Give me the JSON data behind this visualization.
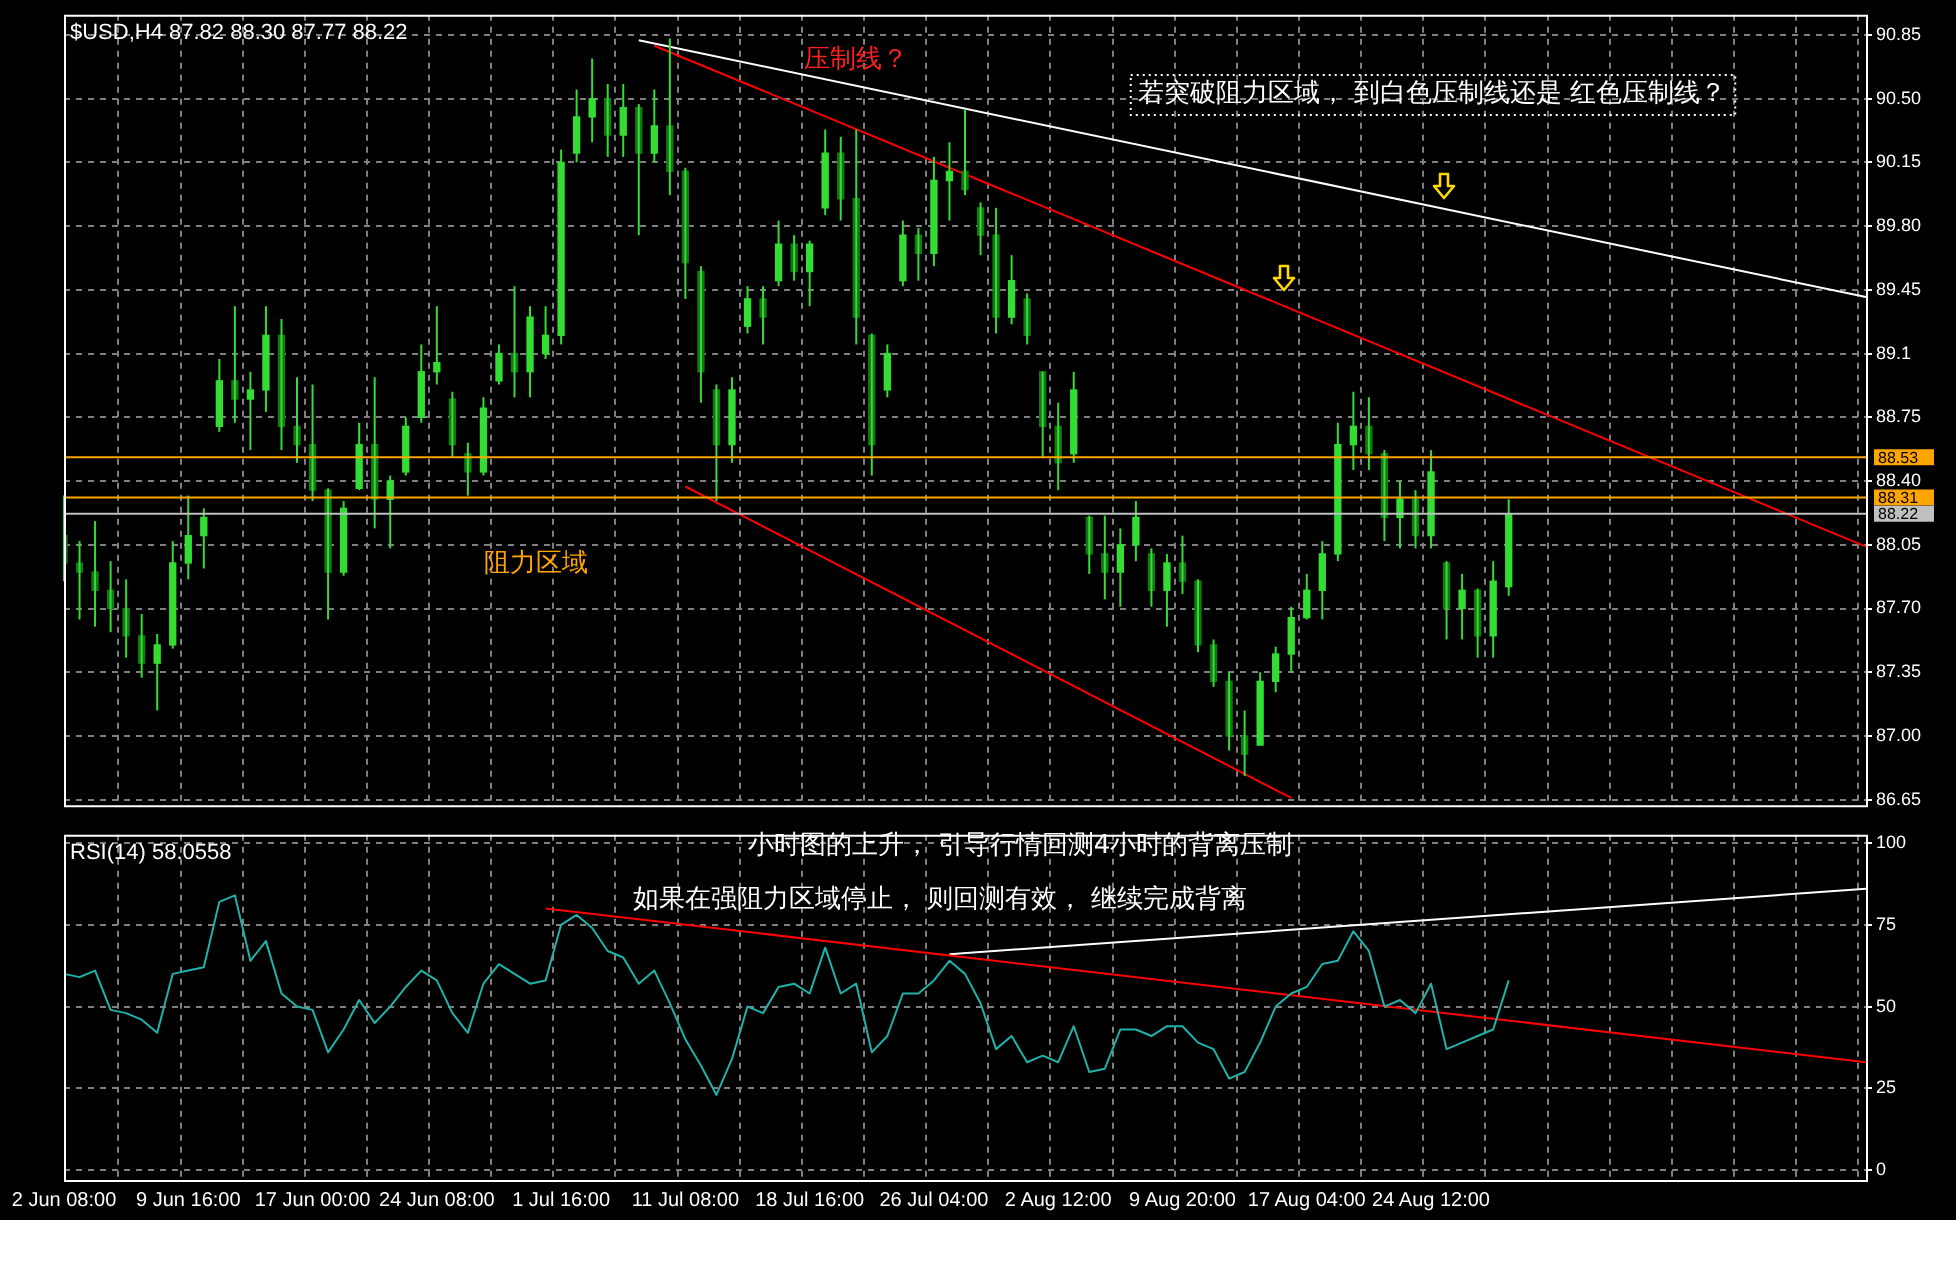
{
  "chart_data": [
    {
      "type": "candlestick",
      "title": "$USD,H4 87.82 88.30 87.77 88.22",
      "color": "#33dd33",
      "colors": [
        "#147814",
        "#147814",
        "#147814",
        "#147814",
        "#147814",
        "#147814",
        "#33dd33",
        "#33dd33",
        "#33dd33",
        "#33dd33",
        "#33dd33",
        "#147814",
        "#33dd33",
        "#33dd33",
        "#147814",
        "#147814",
        "#147814",
        "#147814",
        "#33dd33",
        "#33dd33",
        "#147814",
        "#33dd33",
        "#33dd33",
        "#33dd33",
        "#33dd33",
        "#147814",
        "#147814",
        "#33dd33",
        "#33dd33",
        "#147814",
        "#33dd33",
        "#33dd33",
        "#33dd33",
        "#33dd33",
        "#33dd33",
        "#147814",
        "#33dd33",
        "#147814",
        "#33dd33",
        "#147814",
        "#147814",
        "#147814",
        "#147814",
        "#33dd33",
        "#33dd33",
        "#147814",
        "#33dd33",
        "#147814",
        "#33dd33",
        "#33dd33",
        "#147814",
        "#147814",
        "#147814",
        "#33dd33",
        "#33dd33",
        "#147814",
        "#33dd33",
        "#33dd33",
        "#147814",
        "#147814",
        "#147814",
        "#33dd33",
        "#147814",
        "#147814",
        "#147814",
        "#33dd33",
        "#147814",
        "#147814",
        "#33dd33",
        "#33dd33",
        "#147814",
        "#33dd33",
        "#147814",
        "#147814",
        "#147814",
        "#147814",
        "#147814",
        "#33dd33",
        "#33dd33",
        "#33dd33",
        "#33dd33",
        "#33dd33",
        "#33dd33",
        "#33dd33",
        "#147814",
        "#147814",
        "#33dd33",
        "#147814",
        "#33dd33",
        "#147814",
        "#33dd33",
        "#147814",
        "#33dd33",
        "#33dd33",
        null,
        null,
        null,
        null,
        null,
        null,
        null,
        null,
        null,
        null,
        null,
        null,
        null,
        null,
        null,
        null,
        null,
        null,
        null,
        null,
        null,
        null,
        null
      ],
      "ohlc": [
        [
          88.1,
          88.32,
          87.85,
          87.95
        ],
        [
          87.95,
          88.07,
          87.64,
          87.9
        ],
        [
          87.9,
          88.18,
          87.6,
          87.8
        ],
        [
          87.8,
          87.96,
          87.57,
          87.7
        ],
        [
          87.7,
          87.86,
          87.43,
          87.55
        ],
        [
          87.55,
          87.67,
          87.32,
          87.4
        ],
        [
          87.4,
          87.56,
          87.14,
          87.5
        ],
        [
          87.5,
          88.07,
          87.48,
          87.95
        ],
        [
          87.95,
          88.32,
          87.86,
          88.1
        ],
        [
          88.1,
          88.25,
          87.92,
          88.2
        ],
        [
          88.7,
          89.07,
          88.67,
          88.95
        ],
        [
          88.95,
          89.36,
          88.72,
          88.85
        ],
        [
          88.85,
          89.0,
          88.57,
          88.9
        ],
        [
          88.9,
          89.36,
          88.78,
          89.2
        ],
        [
          89.2,
          89.29,
          88.57,
          88.7
        ],
        [
          88.7,
          88.97,
          88.5,
          88.6
        ],
        [
          88.6,
          88.93,
          88.29,
          88.35
        ],
        [
          88.35,
          88.36,
          87.64,
          87.9
        ],
        [
          87.9,
          88.29,
          87.88,
          88.25
        ],
        [
          88.36,
          88.72,
          88.35,
          88.6
        ],
        [
          88.6,
          88.97,
          88.14,
          88.3
        ],
        [
          88.3,
          88.43,
          88.03,
          88.4
        ],
        [
          88.45,
          88.75,
          88.43,
          88.7
        ],
        [
          88.75,
          89.15,
          88.72,
          89.0
        ],
        [
          89.0,
          89.36,
          88.93,
          89.05
        ],
        [
          88.85,
          88.89,
          88.53,
          88.6
        ],
        [
          88.55,
          88.61,
          88.32,
          88.45
        ],
        [
          88.45,
          88.86,
          88.43,
          88.8
        ],
        [
          88.95,
          89.15,
          88.93,
          89.1
        ],
        [
          89.1,
          89.47,
          88.86,
          89.0
        ],
        [
          89.0,
          89.36,
          88.86,
          89.3
        ],
        [
          89.1,
          89.36,
          89.07,
          89.2
        ],
        [
          89.2,
          90.22,
          89.15,
          90.15
        ],
        [
          90.2,
          90.55,
          90.15,
          90.4
        ],
        [
          90.4,
          90.72,
          90.26,
          90.5
        ],
        [
          90.5,
          90.58,
          90.18,
          90.3
        ],
        [
          90.3,
          90.58,
          90.18,
          90.45
        ],
        [
          90.45,
          90.47,
          89.75,
          90.2
        ],
        [
          90.2,
          90.55,
          90.15,
          90.35
        ],
        [
          90.35,
          90.83,
          89.97,
          90.1
        ],
        [
          90.1,
          90.12,
          89.4,
          89.6
        ],
        [
          89.55,
          89.58,
          88.83,
          89.0
        ],
        [
          88.9,
          88.93,
          88.29,
          88.6
        ],
        [
          88.6,
          88.97,
          88.5,
          88.9
        ],
        [
          89.25,
          89.47,
          89.21,
          89.4
        ],
        [
          89.4,
          89.47,
          89.15,
          89.3
        ],
        [
          89.5,
          89.83,
          89.47,
          89.7
        ],
        [
          89.7,
          89.75,
          89.5,
          89.55
        ],
        [
          89.55,
          89.72,
          89.36,
          89.7
        ],
        [
          89.9,
          90.33,
          89.86,
          90.2
        ],
        [
          90.2,
          90.29,
          89.83,
          89.95
        ],
        [
          89.95,
          90.33,
          89.15,
          89.3
        ],
        [
          89.2,
          89.21,
          88.43,
          88.6
        ],
        [
          88.9,
          89.15,
          88.86,
          89.1
        ],
        [
          89.5,
          89.83,
          89.47,
          89.75
        ],
        [
          89.75,
          89.79,
          89.5,
          89.65
        ],
        [
          89.65,
          90.18,
          89.58,
          90.05
        ],
        [
          90.05,
          90.26,
          89.83,
          90.1
        ],
        [
          90.1,
          90.44,
          89.97,
          90.0
        ],
        [
          89.9,
          89.93,
          89.64,
          89.75
        ],
        [
          89.75,
          89.9,
          89.21,
          89.3
        ],
        [
          89.3,
          89.64,
          89.26,
          89.5
        ],
        [
          89.4,
          89.43,
          89.15,
          89.2
        ],
        [
          89.0,
          89.0,
          88.53,
          88.7
        ],
        [
          88.7,
          88.83,
          88.35,
          88.5
        ],
        [
          88.55,
          89.0,
          88.5,
          88.9
        ],
        [
          88.2,
          88.21,
          87.89,
          88.0
        ],
        [
          88.0,
          88.21,
          87.75,
          87.9
        ],
        [
          87.9,
          88.14,
          87.71,
          88.05
        ],
        [
          88.05,
          88.29,
          87.96,
          88.2
        ],
        [
          88.0,
          88.03,
          87.71,
          87.8
        ],
        [
          87.8,
          88.0,
          87.6,
          87.95
        ],
        [
          87.95,
          88.1,
          87.78,
          87.85
        ],
        [
          87.85,
          87.86,
          87.46,
          87.5
        ],
        [
          87.5,
          87.53,
          87.27,
          87.3
        ],
        [
          87.3,
          87.35,
          86.92,
          87.0
        ],
        [
          87.0,
          87.14,
          86.78,
          86.9
        ],
        [
          86.95,
          87.35,
          86.95,
          87.3
        ],
        [
          87.3,
          87.49,
          87.24,
          87.45
        ],
        [
          87.45,
          87.71,
          87.35,
          87.65
        ],
        [
          87.65,
          87.89,
          87.64,
          87.8
        ],
        [
          87.8,
          88.07,
          87.64,
          88.0
        ],
        [
          88.0,
          88.72,
          87.96,
          88.6
        ],
        [
          88.6,
          88.89,
          88.46,
          88.7
        ],
        [
          88.7,
          88.86,
          88.46,
          88.55
        ],
        [
          88.55,
          88.57,
          88.07,
          88.2
        ],
        [
          88.2,
          88.4,
          88.03,
          88.3
        ],
        [
          88.3,
          88.35,
          88.03,
          88.1
        ],
        [
          88.1,
          88.57,
          88.03,
          88.45
        ],
        [
          87.95,
          87.96,
          87.53,
          87.7
        ],
        [
          87.7,
          87.89,
          87.53,
          87.8
        ],
        [
          87.8,
          87.81,
          87.43,
          87.55
        ],
        [
          87.55,
          87.96,
          87.43,
          87.85
        ],
        [
          87.82,
          88.3,
          87.77,
          88.22
        ],
        null,
        null,
        null,
        null,
        null,
        null,
        null,
        null,
        null,
        null,
        null,
        null,
        null,
        null,
        null,
        null,
        null,
        null,
        null,
        null,
        null,
        null,
        null
      ],
      "series": [
        {
          "type": "line",
          "color": "#ffffff",
          "values": [
            null,
            null,
            null,
            null,
            null,
            null,
            null,
            null,
            null,
            null,
            null,
            null,
            null,
            null,
            null,
            null,
            null,
            null,
            null,
            null,
            null,
            null,
            null,
            null,
            null,
            null,
            null,
            null,
            null,
            null,
            null,
            null,
            null,
            null,
            null,
            null,
            null,
            90.82,
            null,
            null,
            null,
            null,
            null,
            null,
            null,
            null,
            null,
            null,
            null,
            null,
            null,
            null,
            null,
            null,
            null,
            null,
            null,
            null,
            null,
            null,
            null,
            null,
            null,
            null,
            null,
            null,
            null,
            null,
            null,
            null,
            null,
            null,
            null,
            null,
            null,
            null,
            null,
            null,
            null,
            null,
            null,
            null,
            null,
            null,
            null,
            null,
            null,
            null,
            null,
            null,
            null,
            null,
            null,
            null,
            null,
            null,
            null,
            null,
            null,
            null,
            null,
            null,
            null,
            null,
            null,
            null,
            null,
            null,
            null,
            null,
            null,
            null,
            null,
            null,
            null,
            null,
            89.41
          ]
        },
        {
          "type": "line",
          "color": "#ff0000",
          "values": [
            null,
            null,
            null,
            null,
            null,
            null,
            null,
            null,
            null,
            null,
            null,
            null,
            null,
            null,
            null,
            null,
            null,
            null,
            null,
            null,
            null,
            null,
            null,
            null,
            null,
            null,
            null,
            null,
            null,
            null,
            null,
            null,
            null,
            null,
            null,
            null,
            null,
            null,
            90.79,
            null,
            null,
            null,
            null,
            null,
            null,
            null,
            null,
            null,
            null,
            null,
            null,
            null,
            null,
            null,
            null,
            null,
            null,
            null,
            null,
            null,
            null,
            null,
            null,
            null,
            null,
            null,
            null,
            null,
            null,
            null,
            null,
            null,
            null,
            null,
            null,
            null,
            null,
            null,
            null,
            null,
            null,
            null,
            null,
            null,
            null,
            null,
            null,
            null,
            null,
            null,
            null,
            null,
            null,
            null,
            null,
            null,
            null,
            null,
            null,
            null,
            null,
            null,
            null,
            null,
            null,
            null,
            null,
            null,
            null,
            null,
            null,
            null,
            null,
            null,
            null,
            null,
            88.04
          ]
        },
        {
          "type": "line",
          "color": "#ff0000",
          "values": [
            null,
            null,
            null,
            null,
            null,
            null,
            null,
            null,
            null,
            null,
            null,
            null,
            null,
            null,
            null,
            null,
            null,
            null,
            null,
            null,
            null,
            null,
            null,
            null,
            null,
            null,
            null,
            null,
            null,
            null,
            null,
            null,
            null,
            null,
            null,
            null,
            null,
            null,
            null,
            null,
            88.37,
            null,
            null,
            null,
            null,
            null,
            null,
            null,
            null,
            null,
            null,
            null,
            null,
            null,
            null,
            null,
            null,
            null,
            null,
            null,
            null,
            null,
            null,
            null,
            null,
            null,
            null,
            null,
            null,
            null,
            null,
            null,
            null,
            null,
            null,
            null,
            null,
            null,
            null,
            86.66,
            null,
            null,
            null,
            null,
            null,
            null,
            null,
            null,
            null,
            null,
            null,
            null,
            null,
            null,
            null,
            null,
            null,
            null,
            null,
            null,
            null,
            null,
            null,
            null,
            null,
            null,
            null,
            null,
            null,
            null,
            null,
            null,
            null,
            null,
            null,
            null,
            null
          ]
        }
      ],
      "ylim": [
        86.62,
        90.96
      ],
      "yticks": [
        90.85,
        {
          "value": 90.5,
          "label": "90.50"
        },
        90.15,
        {
          "value": 89.8,
          "label": "89.80"
        },
        89.45,
        89.1,
        88.75,
        {
          "value": 88.4,
          "label": "88.40"
        },
        88.05,
        {
          "value": 87.7,
          "label": "87.70"
        },
        87.35,
        {
          "value": 87,
          "label": "87.00"
        },
        86.65
      ],
      "ref_lines": [
        {
          "axis": "y",
          "value": 88.53,
          "label": "88.53",
          "color": "#ffa500"
        },
        {
          "axis": "y",
          "value": 88.31,
          "label": "88.31",
          "color": "#ffa500"
        },
        {
          "axis": "y",
          "value": 88.22,
          "label": "88.22",
          "color": "#c0c0c0"
        }
      ],
      "annotations": [
        "压制线？",
        "若突破阻力区域， 到白色压制线还是 红色压制线？",
        "阻力区域"
      ],
      "grid": true,
      "tick_labels": "y"
    },
    {
      "type": "line",
      "title": "RSI(14) 58.0558",
      "categories": [
        "2 Jun 08:00",
        null,
        null,
        null,
        null,
        null,
        null,
        null,
        "9 Jun 16:00",
        null,
        null,
        null,
        null,
        null,
        null,
        null,
        "17 Jun 00:00",
        null,
        null,
        null,
        null,
        null,
        null,
        null,
        "24 Jun 08:00",
        null,
        null,
        null,
        null,
        null,
        null,
        null,
        "1 Jul 16:00",
        null,
        null,
        null,
        null,
        null,
        null,
        null,
        "11 Jul 08:00",
        null,
        null,
        null,
        null,
        null,
        null,
        null,
        "18 Jul 16:00",
        null,
        null,
        null,
        null,
        null,
        null,
        null,
        "26 Jul 04:00",
        null,
        null,
        null,
        null,
        null,
        null,
        null,
        "2 Aug 12:00",
        null,
        null,
        null,
        null,
        null,
        null,
        null,
        "9 Aug 20:00",
        null,
        null,
        null,
        null,
        null,
        null,
        null,
        "17 Aug 04:00",
        null,
        null,
        null,
        null,
        null,
        null,
        null,
        "24 Aug 12:00",
        null,
        null,
        null,
        null,
        null,
        null,
        null,
        null,
        null,
        null,
        null,
        null,
        null,
        null,
        null,
        null,
        null,
        null,
        null,
        null,
        null,
        null,
        null,
        null,
        null,
        null,
        null,
        null
      ],
      "series": [
        {
          "color": "#20b2aa",
          "values": [
            60,
            59,
            61,
            49,
            48,
            46,
            42,
            60,
            61,
            62,
            82,
            84,
            64,
            70,
            54,
            50,
            49,
            36,
            43,
            52,
            45,
            50,
            56,
            61,
            58,
            48,
            42,
            57,
            63,
            60,
            57,
            58,
            75,
            78,
            74,
            67,
            65,
            57,
            61,
            51,
            40,
            32,
            23,
            34,
            50,
            48,
            56,
            57,
            54,
            68,
            54,
            57,
            36,
            41,
            54,
            54,
            58,
            64,
            60,
            51,
            37,
            41,
            33,
            35,
            33,
            44,
            30,
            31,
            43,
            43,
            41,
            44,
            44,
            39,
            37,
            28,
            30,
            39,
            50,
            54,
            56,
            63,
            64,
            73,
            67,
            50,
            52,
            48,
            57,
            37,
            39,
            41,
            43,
            58,
            null,
            null,
            null,
            null,
            null,
            null,
            null,
            null,
            null,
            null,
            null,
            null,
            null,
            null,
            null,
            null,
            null,
            null,
            null,
            null,
            null,
            null,
            null
          ]
        },
        {
          "color": "#ff0000",
          "values": [
            null,
            null,
            null,
            null,
            null,
            null,
            null,
            null,
            null,
            null,
            null,
            null,
            null,
            null,
            null,
            null,
            null,
            null,
            null,
            null,
            null,
            null,
            null,
            null,
            null,
            null,
            null,
            null,
            null,
            null,
            null,
            80,
            null,
            null,
            null,
            null,
            null,
            null,
            null,
            null,
            null,
            null,
            null,
            null,
            null,
            null,
            null,
            null,
            null,
            null,
            null,
            null,
            null,
            null,
            null,
            null,
            null,
            null,
            null,
            null,
            null,
            null,
            null,
            null,
            null,
            null,
            null,
            null,
            null,
            null,
            null,
            null,
            null,
            null,
            null,
            null,
            null,
            null,
            null,
            null,
            null,
            null,
            null,
            null,
            null,
            null,
            null,
            null,
            null,
            null,
            null,
            null,
            null,
            null,
            null,
            null,
            null,
            null,
            null,
            null,
            null,
            null,
            null,
            null,
            null,
            null,
            null,
            null,
            null,
            null,
            null,
            null,
            null,
            null,
            null,
            null,
            33
          ]
        },
        {
          "color": "#ffffff",
          "values": [
            null,
            null,
            null,
            null,
            null,
            null,
            null,
            null,
            null,
            null,
            null,
            null,
            null,
            null,
            null,
            null,
            null,
            null,
            null,
            null,
            null,
            null,
            null,
            null,
            null,
            null,
            null,
            null,
            null,
            null,
            null,
            null,
            null,
            null,
            null,
            null,
            null,
            null,
            null,
            null,
            null,
            null,
            null,
            null,
            null,
            null,
            null,
            null,
            null,
            null,
            null,
            null,
            null,
            null,
            null,
            null,
            null,
            66,
            null,
            null,
            null,
            null,
            null,
            null,
            null,
            null,
            null,
            null,
            null,
            null,
            null,
            null,
            null,
            null,
            null,
            null,
            null,
            null,
            null,
            null,
            null,
            null,
            null,
            null,
            null,
            null,
            null,
            null,
            null,
            null,
            null,
            null,
            null,
            null,
            null,
            null,
            null,
            null,
            null,
            null,
            null,
            null,
            null,
            null,
            null,
            null,
            null,
            null,
            null,
            null,
            null,
            null,
            null,
            null,
            null,
            null,
            86
          ]
        }
      ],
      "ylim": [
        -3,
        102.5
      ],
      "yticks": [
        0,
        25,
        50,
        75,
        100
      ],
      "annotations": [
        "小时图的上升， 引导行情回测4小时的背离压制",
        "如果在强阻力区域停止， 则回测有效， 继续完成背离"
      ],
      "grid": true
    }
  ]
}
